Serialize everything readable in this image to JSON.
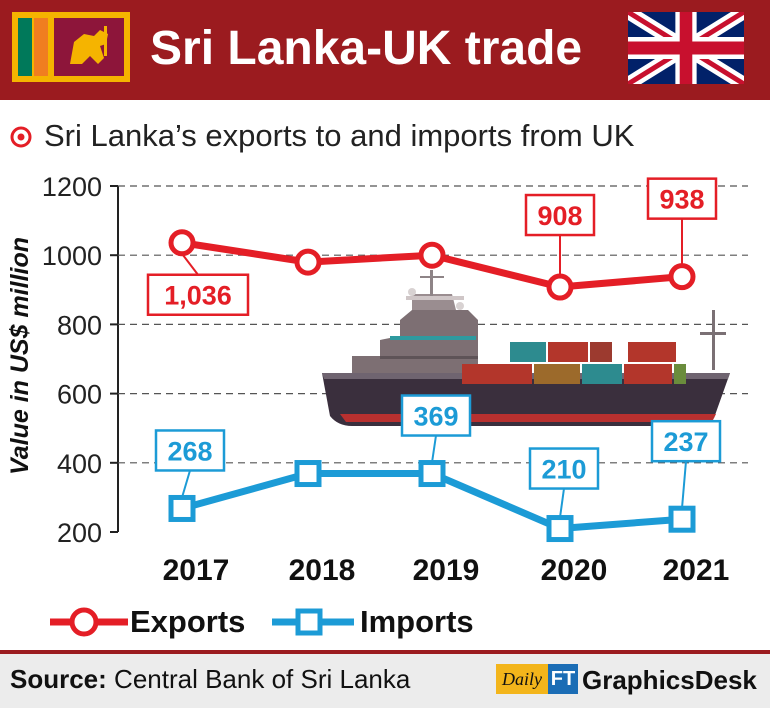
{
  "header": {
    "title": "Sri Lanka-UK trade",
    "left_flag": "sri-lanka-flag",
    "right_flag": "uk-flag"
  },
  "subtitle": "Sri Lanka’s exports to and imports from UK",
  "chart_data": {
    "type": "line",
    "title": "Sri Lanka’s exports to and imports from UK",
    "ylabel": "Value in US$ million",
    "xlabel": "",
    "ylim": [
      200,
      1200
    ],
    "yticks": [
      200,
      400,
      600,
      800,
      1000,
      1200
    ],
    "grid": true,
    "legend": "bottom",
    "categories": [
      "2017",
      "2018",
      "2019",
      "2020",
      "2021"
    ],
    "series": [
      {
        "name": "Exports",
        "color": "#e41e26",
        "marker": "circle",
        "values": [
          1036,
          980,
          1000,
          908,
          938
        ],
        "data_labels": [
          "1,036",
          null,
          null,
          "908",
          "938"
        ]
      },
      {
        "name": "Imports",
        "color": "#1c9bd6",
        "marker": "square",
        "values": [
          268,
          369,
          369,
          210,
          237
        ],
        "data_labels": [
          "268",
          null,
          "369",
          "210",
          "237"
        ]
      }
    ]
  },
  "legend": {
    "exports": "Exports",
    "imports": "Imports"
  },
  "footer": {
    "source_label": "Source:",
    "source_text": "Central Bank of Sri Lanka",
    "brand_daily": "Daily",
    "brand_ft": "FT",
    "brand_desk": "GraphicsDesk"
  },
  "colors": {
    "header_bg": "#9b1b1f",
    "exports": "#e41e26",
    "imports": "#1c9bd6"
  }
}
